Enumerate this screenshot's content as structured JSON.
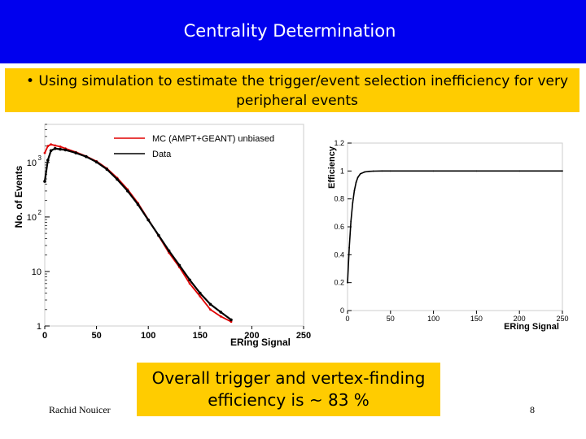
{
  "slide": {
    "title": "Centrality Determination",
    "bullet_marker": "•",
    "bullet_text": "Using simulation to estimate the trigger/event selection inefficiency for very peripheral events",
    "callout": "Overall trigger and vertex-finding efficiency is ~ 83 %",
    "footer_author": "Rachid Nouicer",
    "page_number": "8",
    "colors": {
      "title_bg": "#0000ee",
      "highlight": "#ffcc00",
      "mc_line": "#e00000",
      "data_line": "#000000"
    }
  },
  "chart_data": [
    {
      "type": "line",
      "xlabel": "ERing Signal",
      "ylabel": "No. of Events",
      "yscale": "log",
      "xlim": [
        0,
        250
      ],
      "ylim": [
        1,
        5000
      ],
      "x_ticks": [
        "0",
        "50",
        "100",
        "150",
        "200",
        "250"
      ],
      "y_ticks": [
        {
          "value": 1,
          "base": "1",
          "exp": ""
        },
        {
          "value": 10,
          "base": "10",
          "exp": ""
        },
        {
          "value": 100,
          "base": "10",
          "exp": "2"
        },
        {
          "value": 1000,
          "base": "10",
          "exp": "3"
        }
      ],
      "legend": [
        {
          "label": "MC (AMPT+GEANT) unbiased",
          "color": "#e00000"
        },
        {
          "label": "Data",
          "color": "#000000"
        }
      ],
      "series": [
        {
          "name": "MC (AMPT+GEANT) unbiased",
          "x": [
            0,
            3,
            6,
            10,
            15,
            20,
            30,
            40,
            50,
            60,
            70,
            80,
            90,
            100,
            110,
            120,
            130,
            140,
            150,
            160,
            170,
            180
          ],
          "values": [
            1500,
            2000,
            2150,
            2050,
            1950,
            1800,
            1550,
            1300,
            1050,
            780,
            520,
            320,
            180,
            90,
            45,
            22,
            12,
            6,
            3.5,
            2,
            1.5,
            1.2
          ]
        },
        {
          "name": "Data",
          "x": [
            0,
            3,
            6,
            10,
            15,
            20,
            30,
            40,
            50,
            60,
            70,
            80,
            90,
            100,
            110,
            120,
            130,
            140,
            150,
            160,
            170,
            180
          ],
          "values": [
            450,
            1100,
            1650,
            1800,
            1750,
            1700,
            1500,
            1280,
            1020,
            750,
            490,
            300,
            170,
            88,
            46,
            24,
            13,
            7,
            4,
            2.5,
            1.8,
            1.3
          ]
        }
      ]
    },
    {
      "type": "line",
      "xlabel": "ERing Signal",
      "ylabel": "Efficiency",
      "xlim": [
        0,
        250
      ],
      "ylim": [
        0,
        1.2
      ],
      "x_ticks": [
        "0",
        "50",
        "100",
        "150",
        "200",
        "250"
      ],
      "y_ticks": [
        "0",
        "0.2",
        "0.4",
        "0.6",
        "0.8",
        "1",
        "1.2"
      ],
      "series": [
        {
          "name": "Efficiency",
          "x": [
            0,
            2,
            4,
            6,
            8,
            10,
            12,
            15,
            20,
            25,
            30,
            40,
            50,
            100,
            150,
            200,
            250
          ],
          "values": [
            0.2,
            0.45,
            0.64,
            0.77,
            0.86,
            0.92,
            0.955,
            0.98,
            0.993,
            0.997,
            0.999,
            1.0,
            1.0,
            1.0,
            1.0,
            1.0,
            1.0
          ]
        }
      ]
    }
  ]
}
